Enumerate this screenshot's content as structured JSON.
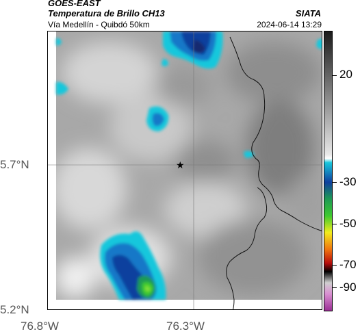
{
  "header": {
    "satellite": "GOES-EAST",
    "product": "Temperatura de Brillo CH13",
    "route": "Vía Medellín - Quibdó 50km",
    "agency": "SIATA",
    "datetime": "2024-06-14 13:29"
  },
  "axes": {
    "lat_ticks": [
      "5.7°N",
      "5.2°N"
    ],
    "lon_ticks": [
      "76.8°W",
      "76.3°W"
    ]
  },
  "colorbar": {
    "ticks": [
      "20",
      "-30",
      "-50",
      "-70",
      "-90"
    ],
    "colors": {
      "warm_top": "#1a1a1a",
      "gray": "#bfbfbf",
      "cyan": "#19c7dc",
      "blue": "#0f3f9e",
      "green": "#3ec92f",
      "yellow": "#f2ec1c",
      "orange": "#f0760e",
      "red": "#b70b0b",
      "black": "#000000",
      "purple": "#c74fbb"
    }
  },
  "map": {
    "marker": "star-icon"
  }
}
